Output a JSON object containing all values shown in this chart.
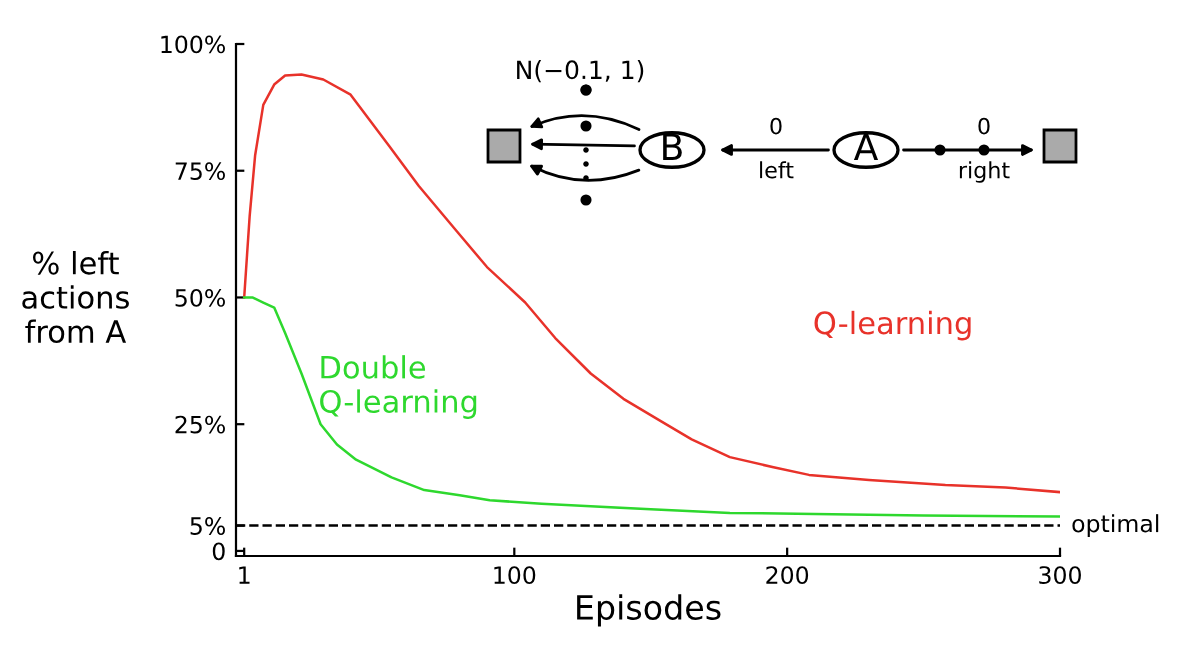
{
  "chart_data": {
    "type": "line",
    "xlabel": "Episodes",
    "ylabel": "% left\nactions\nfrom A",
    "series": [
      {
        "name": "Q-learning",
        "color": "#e8322a",
        "x": [
          1,
          3,
          5,
          8,
          12,
          16,
          22,
          30,
          40,
          54,
          65,
          79,
          90,
          104,
          115,
          128,
          140,
          154,
          165,
          179,
          195,
          208,
          230,
          258,
          280,
          300
        ],
        "values": [
          50,
          66,
          78,
          88,
          92,
          93.8,
          94,
          93,
          90,
          80,
          72,
          63,
          56,
          49,
          42,
          35,
          30,
          25.5,
          22,
          18.5,
          16.5,
          15,
          14,
          13,
          12.5,
          11.6
        ]
      },
      {
        "name": "Double\nQ-learning",
        "color": "#2ed82e",
        "x": [
          1,
          4,
          8,
          12,
          16,
          22,
          29,
          35,
          42,
          55,
          67,
          80,
          91,
          110,
          128,
          150,
          179,
          210,
          250,
          300
        ],
        "values": [
          50,
          50,
          49,
          48,
          43,
          35,
          25,
          21,
          18,
          14.5,
          12,
          11,
          10,
          9.3,
          8.8,
          8.2,
          7.5,
          7.3,
          7,
          6.8
        ]
      }
    ],
    "xlim": [
      -2,
      300
    ],
    "ylim": [
      -1,
      100
    ],
    "xticks": [
      1,
      100,
      200,
      300
    ],
    "yticks": [
      {
        "value": 0,
        "label": "0"
      },
      {
        "value": 5,
        "label": "5%"
      },
      {
        "value": 25,
        "label": "25%"
      },
      {
        "value": 50,
        "label": "50%"
      },
      {
        "value": 75,
        "label": "75%"
      },
      {
        "value": 100,
        "label": "100%"
      }
    ],
    "ref_lines": [
      {
        "axis": "y",
        "value": 5,
        "label": "optimal",
        "color": "#000000",
        "line_style": "dashed"
      }
    ],
    "annotations": [
      "N(−0.1, 1)",
      "B",
      "A",
      "0",
      "left",
      "0",
      "right"
    ],
    "grid": false,
    "legend": false,
    "marker": "none",
    "line_style": "solid"
  }
}
